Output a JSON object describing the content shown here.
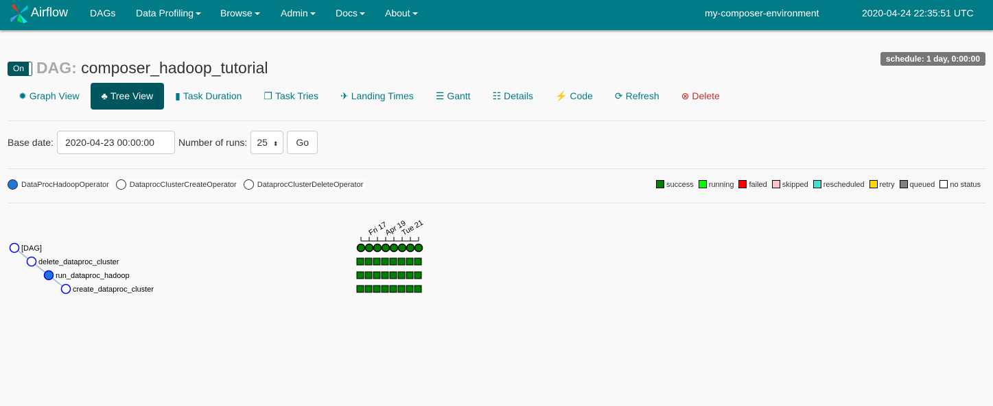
{
  "navbar": {
    "brand": "Airflow",
    "items": [
      {
        "label": "DAGs",
        "dropdown": false
      },
      {
        "label": "Data Profiling",
        "dropdown": true
      },
      {
        "label": "Browse",
        "dropdown": true
      },
      {
        "label": "Admin",
        "dropdown": true
      },
      {
        "label": "Docs",
        "dropdown": true
      },
      {
        "label": "About",
        "dropdown": true
      }
    ],
    "environment": "my-composer-environment",
    "clock": "2020-04-24 22:35:51 UTC"
  },
  "dag": {
    "toggle": "On",
    "prefix": "DAG:",
    "name": "composer_hadoop_tutorial",
    "schedule": "schedule: 1 day, 0:00:00"
  },
  "tabs": [
    {
      "label": "Graph View",
      "icon": "asterisk-icon",
      "glyph": "✹"
    },
    {
      "label": "Tree View",
      "icon": "tree-icon",
      "glyph": "♣",
      "active": true
    },
    {
      "label": "Task Duration",
      "icon": "bar-chart-icon",
      "glyph": "▮"
    },
    {
      "label": "Task Tries",
      "icon": "files-icon",
      "glyph": "❐"
    },
    {
      "label": "Landing Times",
      "icon": "plane-icon",
      "glyph": "✈"
    },
    {
      "label": "Gantt",
      "icon": "align-left-icon",
      "glyph": "☰"
    },
    {
      "label": "Details",
      "icon": "list-icon",
      "glyph": "☷"
    },
    {
      "label": "Code",
      "icon": "flash-icon",
      "glyph": "⚡"
    },
    {
      "label": "Refresh",
      "icon": "refresh-icon",
      "glyph": "⟳"
    },
    {
      "label": "Delete",
      "icon": "remove-circle-icon",
      "glyph": "⊗"
    }
  ],
  "form": {
    "base_date_label": "Base date:",
    "base_date": "2020-04-23 00:00:00",
    "runs_label": "Number of runs:",
    "runs": "25",
    "go": "Go"
  },
  "operators": [
    {
      "label": "DataProcHadoopOperator",
      "color": "#1f77d4"
    },
    {
      "label": "DataprocClusterCreateOperator",
      "color": "#ffffff"
    },
    {
      "label": "DataprocClusterDeleteOperator",
      "color": "#ffffff"
    }
  ],
  "legend": [
    {
      "label": "success",
      "color": "#008000"
    },
    {
      "label": "running",
      "color": "#00ff00"
    },
    {
      "label": "failed",
      "color": "#ff0000"
    },
    {
      "label": "skipped",
      "color": "#ffc0cb"
    },
    {
      "label": "rescheduled",
      "color": "#40e0d0"
    },
    {
      "label": "retry",
      "color": "#ffd700"
    },
    {
      "label": "queued",
      "color": "#808080"
    },
    {
      "label": "no status",
      "color": "#ffffff"
    }
  ],
  "tree": {
    "nodes": [
      {
        "label": "[DAG]",
        "filled": false
      },
      {
        "label": "delete_dataproc_cluster",
        "filled": false
      },
      {
        "label": "run_dataproc_hadoop",
        "filled": true
      },
      {
        "label": "create_dataproc_cluster",
        "filled": false
      }
    ],
    "date_ticks": [
      "Fri 17",
      "Apr 19",
      "Tue 21"
    ],
    "runs": 8,
    "status": [
      [
        "success",
        "success",
        "success",
        "success",
        "success",
        "success",
        "success",
        "success"
      ],
      [
        "success",
        "success",
        "success",
        "success",
        "success",
        "success",
        "success",
        "success"
      ],
      [
        "success",
        "success",
        "success",
        "success",
        "success",
        "success",
        "success",
        "success"
      ],
      [
        "success",
        "success",
        "success",
        "success",
        "success",
        "success",
        "success",
        "success"
      ]
    ]
  }
}
